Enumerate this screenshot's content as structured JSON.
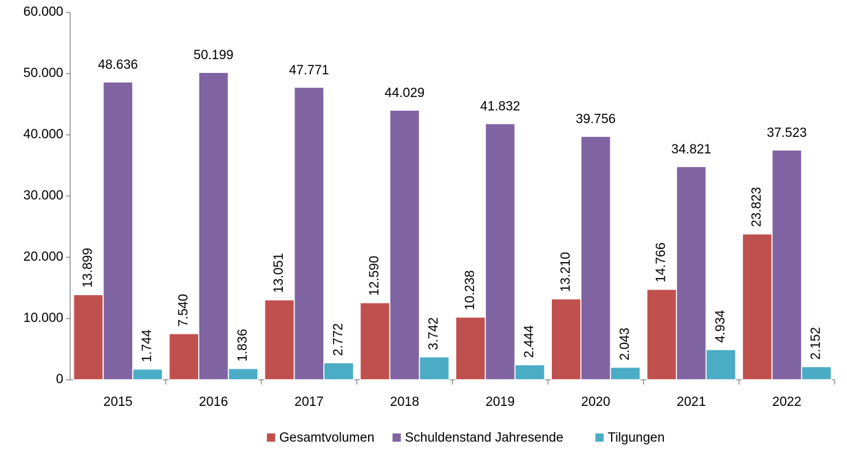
{
  "chart_data": {
    "type": "bar",
    "categories": [
      "2015",
      "2016",
      "2017",
      "2018",
      "2019",
      "2020",
      "2021",
      "2022"
    ],
    "series": [
      {
        "name": "Gesamtvolumen",
        "color": "#c0504d",
        "values": [
          13899,
          7540,
          13051,
          12590,
          10238,
          13210,
          14766,
          23823
        ],
        "value_labels": [
          "13.899",
          "7.540",
          "13.051",
          "12.590",
          "10.238",
          "13.210",
          "14.766",
          "23.823"
        ]
      },
      {
        "name": "Schuldenstand Jahresende",
        "color": "#8064a2",
        "values": [
          48636,
          50199,
          47771,
          44029,
          41832,
          39756,
          34821,
          37523
        ],
        "value_labels": [
          "48.636",
          "50.199",
          "47.771",
          "44.029",
          "41.832",
          "39.756",
          "34.821",
          "37.523"
        ]
      },
      {
        "name": "Tilgungen",
        "color": "#4bacc6",
        "values": [
          1744,
          1836,
          2772,
          3742,
          2444,
          2043,
          4934,
          2152
        ],
        "value_labels": [
          "1.744",
          "1.836",
          "2.772",
          "3.742",
          "2.444",
          "2.043",
          "4.934",
          "2.152"
        ]
      }
    ],
    "ylim": [
      0,
      60000
    ],
    "yticks": [
      0,
      {
        "value": 10000,
        "label": "10.000"
      },
      {
        "value": 20000,
        "label": "20.000"
      },
      {
        "value": 30000,
        "label": "30.000"
      },
      {
        "value": 40000,
        "label": "40.000"
      },
      {
        "value": 50000,
        "label": "50.000"
      },
      {
        "value": 60000,
        "label": "60.000"
      }
    ],
    "grid": false,
    "legend": "bottom"
  }
}
